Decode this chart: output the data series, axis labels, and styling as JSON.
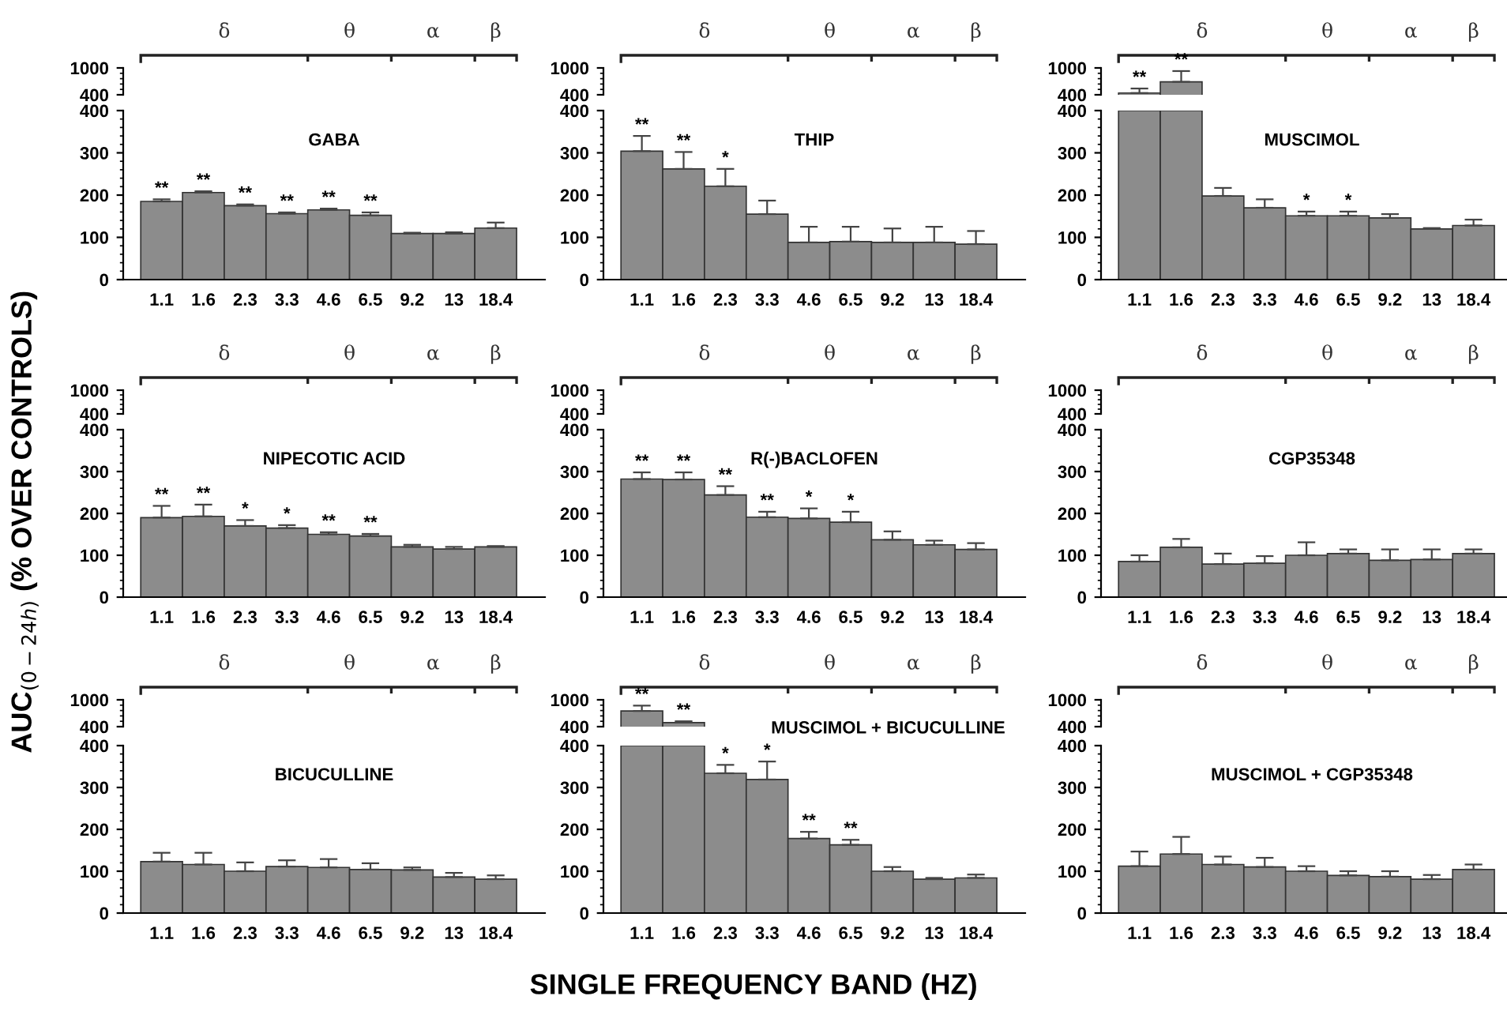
{
  "chart_data": [
    {
      "type": "bar",
      "categories": [
        "1.1",
        "1.6",
        "2.3",
        "3.3",
        "4.6",
        "6.5",
        "9.2",
        "13",
        "18.4"
      ],
      "values": [
        null,
        null,
        null,
        null,
        null,
        null,
        null,
        null,
        null
      ],
      "color": "#8c8c8c",
      "ylim": [
        400,
        1000
      ],
      "yticks": [
        400,
        1000
      ],
      "tick_labels": "y",
      "annotations": [
        "δ",
        "θ",
        "α",
        "β"
      ]
    },
    {
      "type": "bar",
      "title": "GABA",
      "categories": [
        "1.1",
        "1.6",
        "2.3",
        "3.3",
        "4.6",
        "6.5",
        "9.2",
        "13",
        "18.4"
      ],
      "values": [
        185,
        206,
        175,
        156,
        165,
        152,
        109,
        109,
        122
      ],
      "errors": [
        [
          185,
          190
        ],
        [
          206,
          209
        ],
        [
          175,
          178
        ],
        [
          156,
          159
        ],
        [
          165,
          168
        ],
        [
          152,
          159
        ],
        [
          109,
          111
        ],
        [
          109,
          112
        ],
        [
          122,
          135
        ]
      ],
      "color": "#8c8c8c",
      "ylim": [
        0,
        400
      ],
      "yticks": [
        0,
        100,
        200,
        300,
        400
      ],
      "annotations": [
        {
          "text": "**",
          "x": "1.1",
          "y": 190
        },
        {
          "text": "**",
          "x": "1.6",
          "y": 209
        },
        {
          "text": "**",
          "x": "2.3",
          "y": 178
        },
        {
          "text": "**",
          "x": "3.3",
          "y": 159
        },
        {
          "text": "**",
          "x": "4.6",
          "y": 168
        },
        {
          "text": "**",
          "x": "6.5",
          "y": 159
        }
      ]
    },
    {
      "type": "bar",
      "categories": [
        "1.1",
        "1.6",
        "2.3",
        "3.3",
        "4.6",
        "6.5",
        "9.2",
        "13",
        "18.4"
      ],
      "values": [
        null,
        null,
        null,
        null,
        null,
        null,
        null,
        null,
        null
      ],
      "color": "#8c8c8c",
      "ylim": [
        400,
        1000
      ],
      "yticks": [
        400,
        1000
      ],
      "tick_labels": "y",
      "annotations": [
        "δ",
        "θ",
        "α",
        "β"
      ]
    },
    {
      "type": "bar",
      "title": "THIP",
      "categories": [
        "1.1",
        "1.6",
        "2.3",
        "3.3",
        "4.6",
        "6.5",
        "9.2",
        "13",
        "18.4"
      ],
      "values": [
        304,
        262,
        221,
        155,
        88,
        90,
        88,
        88,
        84
      ],
      "errors": [
        [
          304,
          340
        ],
        [
          262,
          302
        ],
        [
          221,
          262
        ],
        [
          155,
          187
        ],
        [
          88,
          125
        ],
        [
          90,
          125
        ],
        [
          88,
          121
        ],
        [
          88,
          125
        ],
        [
          84,
          115
        ]
      ],
      "color": "#8c8c8c",
      "ylim": [
        0,
        400
      ],
      "yticks": [
        0,
        100,
        200,
        300,
        400
      ],
      "annotations": [
        {
          "text": "**",
          "x": "1.1",
          "y": 340
        },
        {
          "text": "**",
          "x": "1.6",
          "y": 302
        },
        {
          "text": "*",
          "x": "2.3",
          "y": 262
        }
      ]
    },
    {
      "type": "bar",
      "categories": [
        "1.1",
        "1.6",
        "2.3",
        "3.3",
        "4.6",
        "6.5",
        "9.2",
        "13",
        "18.4"
      ],
      "values": [
        440,
        690,
        null,
        null,
        null,
        null,
        null,
        null,
        null
      ],
      "errors": [
        [
          440,
          540
        ],
        [
          690,
          930
        ],
        null,
        null,
        null,
        null,
        null,
        null,
        null
      ],
      "color": "#8c8c8c",
      "ylim": [
        400,
        1000
      ],
      "yticks": [
        400,
        1000
      ],
      "tick_labels": "y",
      "annotations": [
        "δ",
        "θ",
        "α",
        "β",
        {
          "text": "**",
          "x": "1.1",
          "y": 540
        },
        {
          "text": "**",
          "x": "1.6",
          "y": 930
        }
      ]
    },
    {
      "type": "bar",
      "title": "MUSCIMOL",
      "categories": [
        "1.1",
        "1.6",
        "2.3",
        "3.3",
        "4.6",
        "6.5",
        "9.2",
        "13",
        "18.4"
      ],
      "values": [
        400,
        400,
        198,
        170,
        151,
        151,
        146,
        120,
        128
      ],
      "errors": [
        null,
        null,
        [
          198,
          217
        ],
        [
          170,
          190
        ],
        [
          151,
          161
        ],
        [
          151,
          161
        ],
        [
          146,
          155
        ],
        [
          120,
          122
        ],
        [
          128,
          142
        ]
      ],
      "color": "#8c8c8c",
      "ylim": [
        0,
        400
      ],
      "yticks": [
        0,
        100,
        200,
        300,
        400
      ],
      "annotations": [
        {
          "text": "*",
          "x": "4.6",
          "y": 161
        },
        {
          "text": "*",
          "x": "6.5",
          "y": 161
        }
      ]
    },
    {
      "type": "bar",
      "categories": [
        "1.1",
        "1.6",
        "2.3",
        "3.3",
        "4.6",
        "6.5",
        "9.2",
        "13",
        "18.4"
      ],
      "values": [
        null,
        null,
        null,
        null,
        null,
        null,
        null,
        null,
        null
      ],
      "color": "#8c8c8c",
      "ylim": [
        400,
        1000
      ],
      "yticks": [
        400,
        1000
      ],
      "tick_labels": "y",
      "annotations": [
        "δ",
        "θ",
        "α",
        "β"
      ]
    },
    {
      "type": "bar",
      "title": "NIPECOTIC ACID",
      "ylabel": "AUC$_{(0−24h)}$ (% OVER CONTROLS)",
      "categories": [
        "1.1",
        "1.6",
        "2.3",
        "3.3",
        "4.6",
        "6.5",
        "9.2",
        "13",
        "18.4"
      ],
      "values": [
        190,
        193,
        170,
        165,
        150,
        146,
        120,
        115,
        120
      ],
      "errors": [
        [
          190,
          218
        ],
        [
          193,
          221
        ],
        [
          170,
          184
        ],
        [
          165,
          172
        ],
        [
          150,
          155
        ],
        [
          146,
          151
        ],
        [
          120,
          125
        ],
        [
          115,
          120
        ],
        [
          120,
          122
        ]
      ],
      "color": "#8c8c8c",
      "ylim": [
        0,
        400
      ],
      "yticks": [
        0,
        100,
        200,
        300,
        400
      ],
      "annotations": [
        {
          "text": "**",
          "x": "1.1",
          "y": 218
        },
        {
          "text": "**",
          "x": "1.6",
          "y": 221
        },
        {
          "text": "*",
          "x": "2.3",
          "y": 184
        },
        {
          "text": "*",
          "x": "3.3",
          "y": 172
        },
        {
          "text": "**",
          "x": "4.6",
          "y": 155
        },
        {
          "text": "**",
          "x": "6.5",
          "y": 151
        }
      ]
    },
    {
      "type": "bar",
      "categories": [
        "1.1",
        "1.6",
        "2.3",
        "3.3",
        "4.6",
        "6.5",
        "9.2",
        "13",
        "18.4"
      ],
      "values": [
        null,
        null,
        null,
        null,
        null,
        null,
        null,
        null,
        null
      ],
      "color": "#8c8c8c",
      "ylim": [
        400,
        1000
      ],
      "yticks": [
        400,
        1000
      ],
      "tick_labels": "y",
      "annotations": [
        "δ",
        "θ",
        "α",
        "β"
      ]
    },
    {
      "type": "bar",
      "title": "R(-)BACLOFEN",
      "categories": [
        "1.1",
        "1.6",
        "2.3",
        "3.3",
        "4.6",
        "6.5",
        "9.2",
        "13",
        "18.4"
      ],
      "values": [
        282,
        281,
        244,
        191,
        188,
        179,
        137,
        125,
        114
      ],
      "errors": [
        [
          282,
          298
        ],
        [
          281,
          298
        ],
        [
          244,
          265
        ],
        [
          191,
          204
        ],
        [
          188,
          212
        ],
        [
          179,
          204
        ],
        [
          137,
          157
        ],
        [
          125,
          135
        ],
        [
          114,
          129
        ]
      ],
      "color": "#8c8c8c",
      "ylim": [
        0,
        400
      ],
      "yticks": [
        0,
        100,
        200,
        300,
        400
      ],
      "annotations": [
        {
          "text": "**",
          "x": "1.1",
          "y": 298
        },
        {
          "text": "**",
          "x": "1.6",
          "y": 298
        },
        {
          "text": "**",
          "x": "2.3",
          "y": 265
        },
        {
          "text": "**",
          "x": "3.3",
          "y": 204
        },
        {
          "text": "*",
          "x": "4.6",
          "y": 212
        },
        {
          "text": "*",
          "x": "6.5",
          "y": 204
        }
      ]
    },
    {
      "type": "bar",
      "categories": [
        "1.1",
        "1.6",
        "2.3",
        "3.3",
        "4.6",
        "6.5",
        "9.2",
        "13",
        "18.4"
      ],
      "values": [
        null,
        null,
        null,
        null,
        null,
        null,
        null,
        null,
        null
      ],
      "color": "#8c8c8c",
      "ylim": [
        400,
        1000
      ],
      "yticks": [
        400,
        1000
      ],
      "tick_labels": "y",
      "annotations": [
        "δ",
        "θ",
        "α",
        "β"
      ]
    },
    {
      "type": "bar",
      "title": "CGP35348",
      "categories": [
        "1.1",
        "1.6",
        "2.3",
        "3.3",
        "4.6",
        "6.5",
        "9.2",
        "13",
        "18.4"
      ],
      "values": [
        85,
        119,
        79,
        81,
        100,
        104,
        88,
        90,
        104
      ],
      "errors": [
        [
          85,
          100
        ],
        [
          119,
          139
        ],
        [
          79,
          104
        ],
        [
          81,
          98
        ],
        [
          100,
          131
        ],
        [
          104,
          114
        ],
        [
          88,
          114
        ],
        [
          90,
          114
        ],
        [
          104,
          114
        ]
      ],
      "color": "#8c8c8c",
      "ylim": [
        0,
        400
      ],
      "yticks": [
        0,
        100,
        200,
        300,
        400
      ]
    },
    {
      "type": "bar",
      "categories": [
        "1.1",
        "1.6",
        "2.3",
        "3.3",
        "4.6",
        "6.5",
        "9.2",
        "13",
        "18.4"
      ],
      "values": [
        null,
        null,
        null,
        null,
        null,
        null,
        null,
        null,
        null
      ],
      "color": "#8c8c8c",
      "ylim": [
        400,
        1000
      ],
      "yticks": [
        400,
        1000
      ],
      "tick_labels": "y",
      "annotations": [
        "δ",
        "θ",
        "α",
        "β"
      ]
    },
    {
      "type": "bar",
      "title": "BICUCULLINE",
      "categories": [
        "1.1",
        "1.6",
        "2.3",
        "3.3",
        "4.6",
        "6.5",
        "9.2",
        "13",
        "18.4"
      ],
      "values": [
        123,
        116,
        100,
        111,
        109,
        104,
        103,
        86,
        81
      ],
      "errors": [
        [
          123,
          144
        ],
        [
          116,
          144
        ],
        [
          100,
          121
        ],
        [
          111,
          126
        ],
        [
          109,
          129
        ],
        [
          104,
          119
        ],
        [
          103,
          109
        ],
        [
          86,
          96
        ],
        [
          81,
          90
        ]
      ],
      "color": "#8c8c8c",
      "ylim": [
        0,
        400
      ],
      "yticks": [
        0,
        100,
        200,
        300,
        400
      ]
    },
    {
      "type": "bar",
      "categories": [
        "1.1",
        "1.6",
        "2.3",
        "3.3",
        "4.6",
        "6.5",
        "9.2",
        "13",
        "18.4"
      ],
      "values": [
        750,
        490,
        null,
        null,
        null,
        null,
        null,
        null,
        null
      ],
      "errors": [
        [
          750,
          870
        ],
        [
          490,
          520
        ],
        null,
        null,
        null,
        null,
        null,
        null,
        null
      ],
      "color": "#8c8c8c",
      "ylim": [
        400,
        1000
      ],
      "yticks": [
        400,
        1000
      ],
      "tick_labels": "y",
      "annotations": [
        "δ",
        "θ",
        "α",
        "β",
        {
          "text": "**",
          "x": "1.1",
          "y": 870
        },
        {
          "text": "**",
          "x": "1.6",
          "y": 520
        }
      ]
    },
    {
      "type": "bar",
      "title": "MUSCIMOL + BICUCULLINE",
      "xlabel": "SINGLE FREQUENCY BAND (HZ)",
      "categories": [
        "1.1",
        "1.6",
        "2.3",
        "3.3",
        "4.6",
        "6.5",
        "9.2",
        "13",
        "18.4"
      ],
      "values": [
        400,
        400,
        334,
        319,
        178,
        163,
        100,
        81,
        84
      ],
      "errors": [
        null,
        null,
        [
          334,
          354
        ],
        [
          319,
          362
        ],
        [
          178,
          194
        ],
        [
          163,
          175
        ],
        [
          100,
          110
        ],
        [
          81,
          84
        ],
        [
          84,
          92
        ]
      ],
      "color": "#8c8c8c",
      "ylim": [
        0,
        400
      ],
      "yticks": [
        0,
        100,
        200,
        300,
        400
      ],
      "annotations": [
        {
          "text": "*",
          "x": "2.3",
          "y": 354
        },
        {
          "text": "*",
          "x": "3.3",
          "y": 362
        },
        {
          "text": "**",
          "x": "4.6",
          "y": 194
        },
        {
          "text": "**",
          "x": "6.5",
          "y": 175
        }
      ]
    },
    {
      "type": "bar",
      "categories": [
        "1.1",
        "1.6",
        "2.3",
        "3.3",
        "4.6",
        "6.5",
        "9.2",
        "13",
        "18.4"
      ],
      "values": [
        null,
        null,
        null,
        null,
        null,
        null,
        null,
        null,
        null
      ],
      "color": "#8c8c8c",
      "ylim": [
        400,
        1000
      ],
      "yticks": [
        400,
        1000
      ],
      "tick_labels": "y",
      "annotations": [
        "δ",
        "θ",
        "α",
        "β"
      ]
    },
    {
      "type": "bar",
      "title": "MUSCIMOL + CGP35348",
      "categories": [
        "1.1",
        "1.6",
        "2.3",
        "3.3",
        "4.6",
        "6.5",
        "9.2",
        "13",
        "18.4"
      ],
      "values": [
        112,
        141,
        116,
        110,
        100,
        90,
        87,
        81,
        104
      ],
      "errors": [
        [
          112,
          147
        ],
        [
          141,
          182
        ],
        [
          116,
          135
        ],
        [
          110,
          132
        ],
        [
          100,
          112
        ],
        [
          90,
          100
        ],
        [
          87,
          100
        ],
        [
          81,
          91
        ],
        [
          104,
          116
        ]
      ],
      "color": "#8c8c8c",
      "ylim": [
        0,
        400
      ],
      "yticks": [
        0,
        100,
        200,
        300,
        400
      ]
    }
  ]
}
